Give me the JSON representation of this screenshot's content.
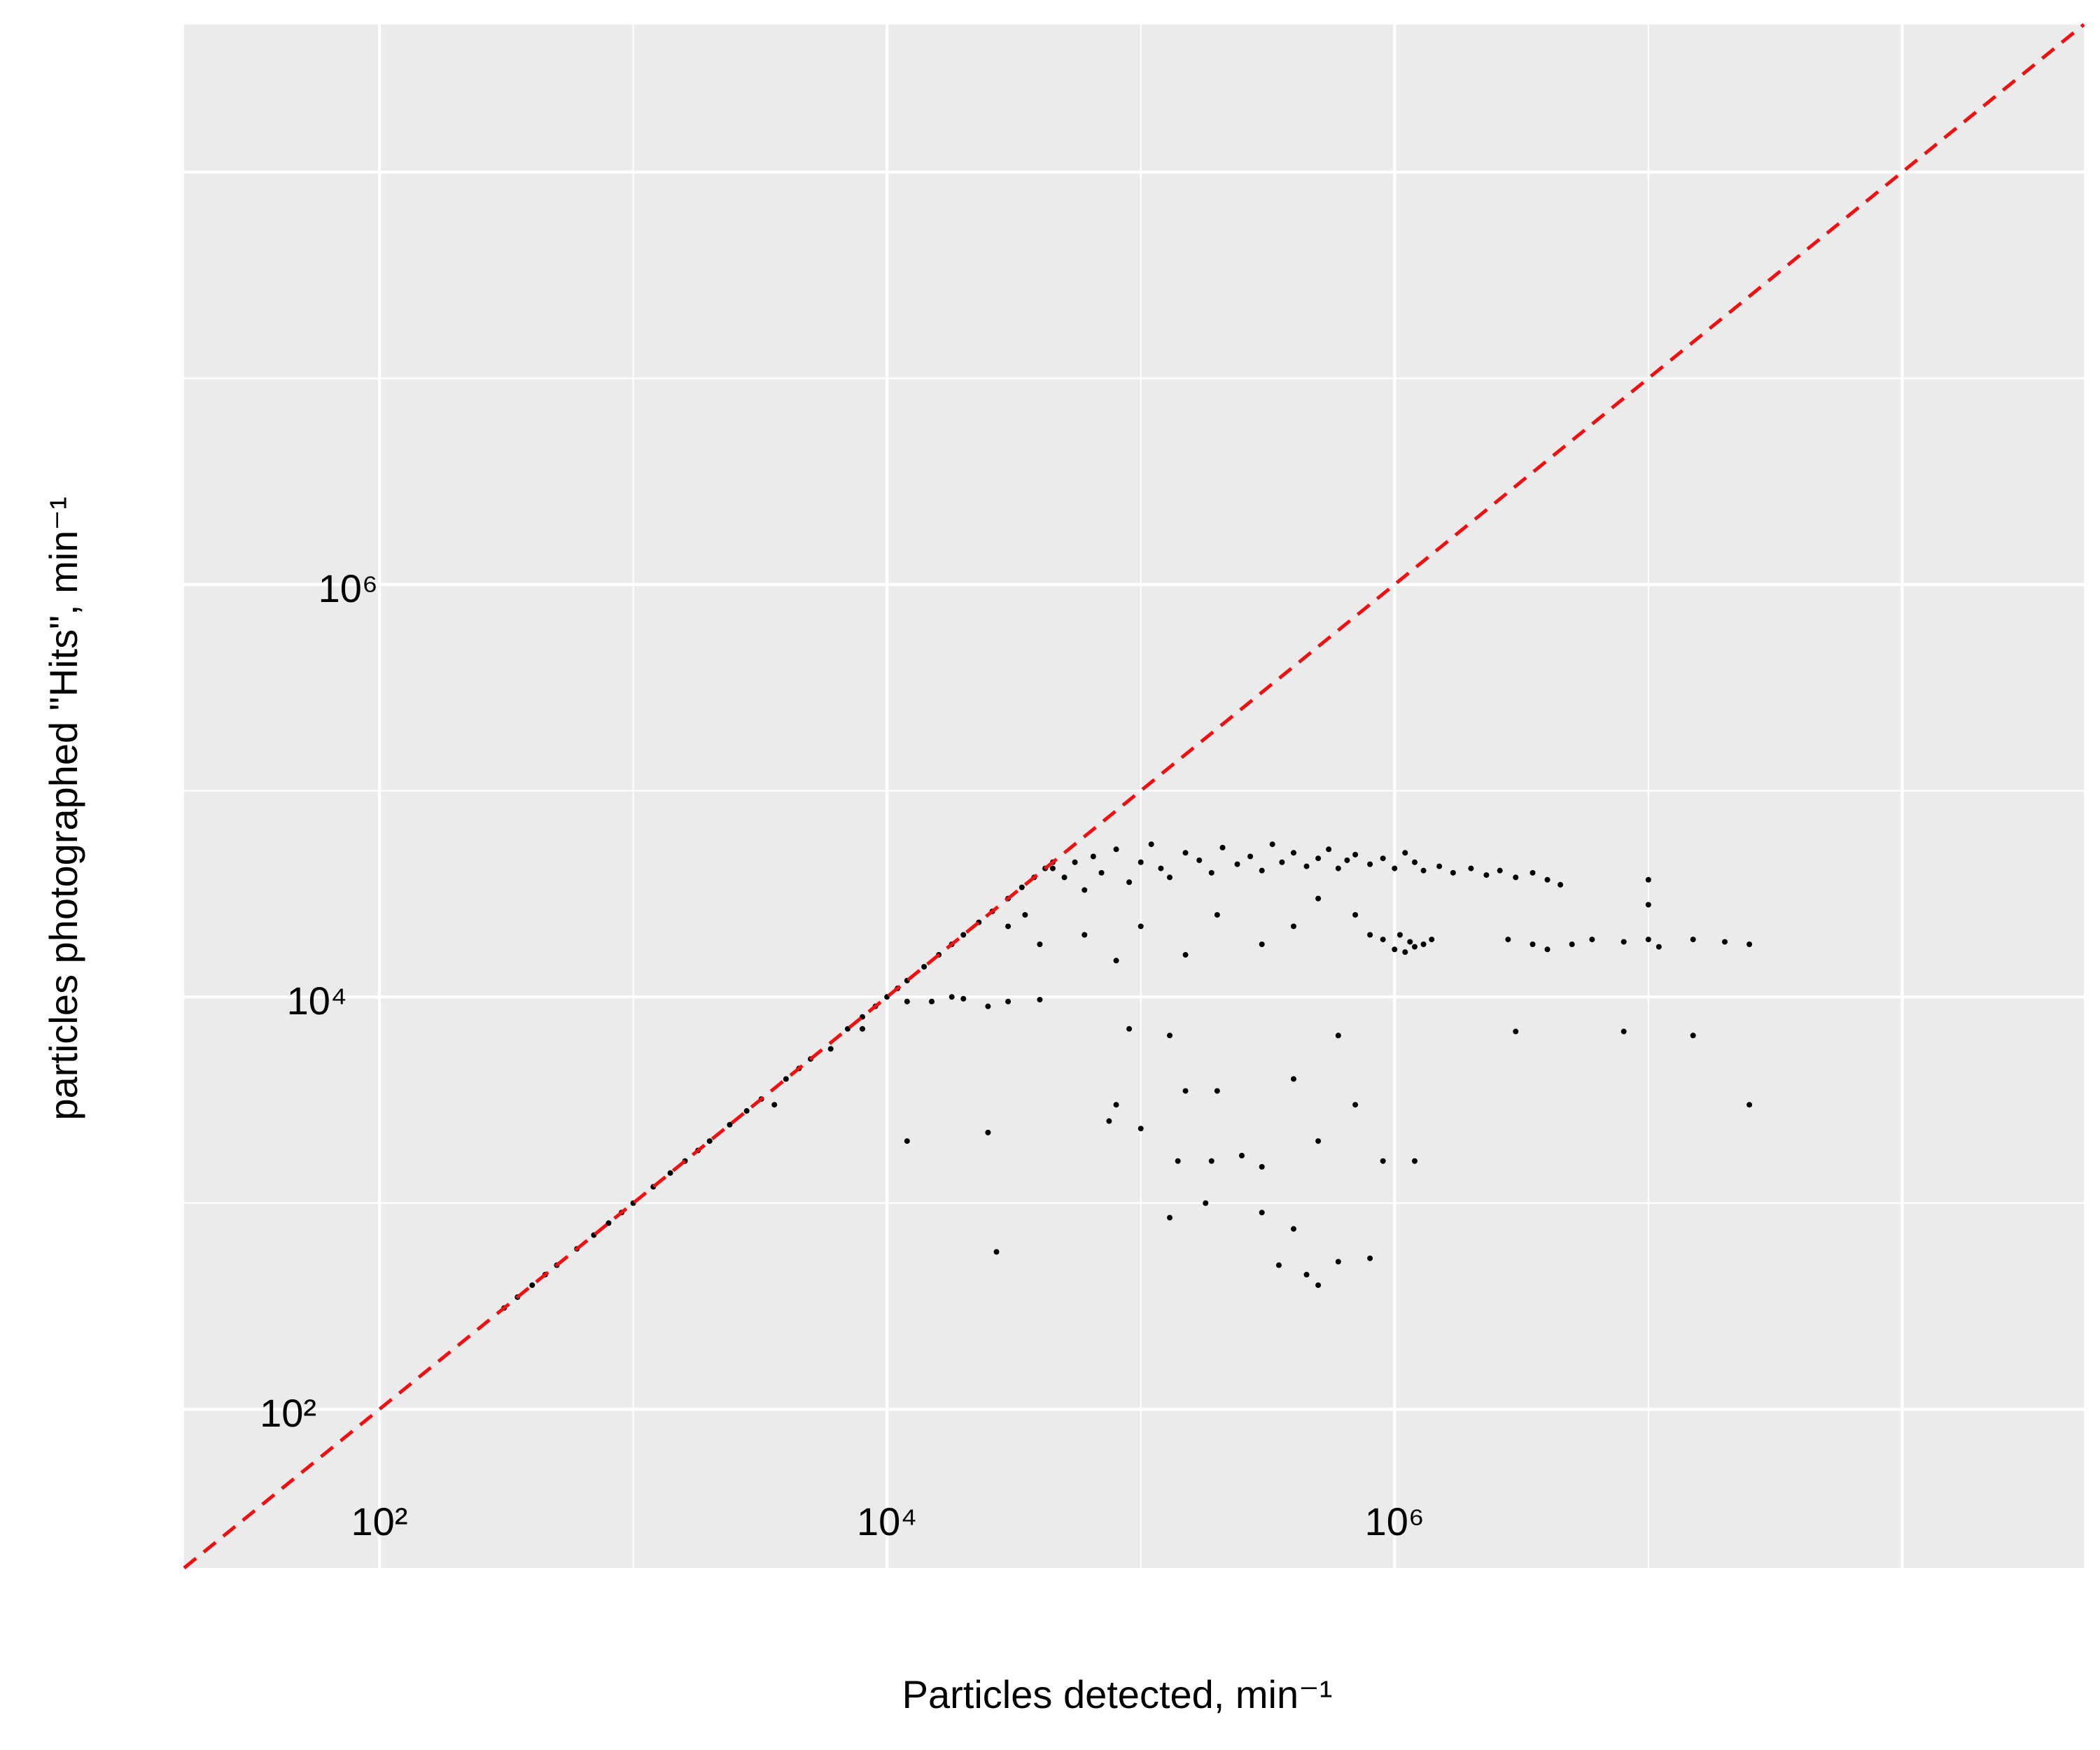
{
  "chart_data": {
    "type": "scatter",
    "x_label": "Particles detected, min⁻¹",
    "y_label": "particles photographed \"Hits\", min⁻¹",
    "x_log": true,
    "y_log": true,
    "xlim": [
      17,
      520000000
    ],
    "ylim": [
      17,
      520000000
    ],
    "xticks": [
      {
        "value": 100,
        "label": "10²"
      },
      {
        "value": 10000,
        "label": "10⁴"
      },
      {
        "value": 1000000,
        "label": "10⁶"
      }
    ],
    "yticks": [
      {
        "value": 100,
        "label": "10²"
      },
      {
        "value": 10000,
        "label": "10⁴"
      },
      {
        "value": 1000000,
        "label": "10⁶"
      }
    ],
    "xgrid_major": [
      100,
      10000,
      1000000,
      100000000
    ],
    "xgrid_minor": [
      1000,
      100000,
      10000000
    ],
    "ygrid_major": [
      100,
      10000,
      1000000,
      100000000
    ],
    "ygrid_minor": [
      1000,
      100000,
      10000000
    ],
    "color": "#000000",
    "identity_line_color": "#ee1111",
    "background": "#ebebeb",
    "x": [
      310,
      350,
      400,
      450,
      500,
      600,
      700,
      800,
      900,
      1000,
      1200,
      1400,
      1600,
      1800,
      2000,
      2400,
      2800,
      3200,
      3600,
      4000,
      4500,
      5000,
      6000,
      7000,
      8000,
      9000,
      10000,
      11000,
      12000,
      14000,
      16000,
      18000,
      20000,
      23000,
      26000,
      30000,
      34000,
      38000,
      42000,
      45000,
      45000,
      50000,
      55000,
      60000,
      65000,
      70000,
      80000,
      90000,
      100000,
      110000,
      120000,
      130000,
      150000,
      170000,
      190000,
      210000,
      240000,
      270000,
      300000,
      330000,
      360000,
      400000,
      450000,
      500000,
      550000,
      600000,
      650000,
      700000,
      800000,
      900000,
      1000000,
      1100000,
      1200000,
      1300000,
      1500000,
      1700000,
      2000000,
      2300000,
      2600000,
      3000000,
      3500000,
      4000000,
      4500000,
      30000,
      35000,
      40000,
      60000,
      80000,
      100000,
      150000,
      200000,
      300000,
      400000,
      500000,
      700000,
      800000,
      900000,
      1000000,
      1050000,
      1100000,
      1150000,
      1200000,
      1300000,
      1400000,
      2800000,
      3500000,
      4000000,
      5000000,
      6000000,
      8000000,
      10000000,
      11000000,
      15000000,
      20000000,
      25000000,
      10000000,
      10000000,
      12000,
      15000,
      20000,
      25000,
      30000,
      40000,
      8000,
      12000,
      25000,
      27000,
      90000,
      80000,
      75000,
      100000,
      130000,
      150000,
      140000,
      190000,
      200000,
      250000,
      300000,
      400000,
      600000,
      700000,
      500000,
      900000,
      1200000,
      8000000,
      15000000,
      25000000,
      180000,
      350000,
      450000,
      500000,
      600000,
      800000,
      130000,
      300000,
      400000,
      3000000,
      18000
    ],
    "y": [
      310,
      350,
      400,
      450,
      500,
      600,
      700,
      800,
      900,
      1000,
      1200,
      1400,
      1600,
      1800,
      2000,
      2400,
      2800,
      3200,
      3000,
      4000,
      4500,
      5000,
      5600,
      7000,
      8000,
      9000,
      10000,
      11000,
      12000,
      14000,
      16000,
      18000,
      20000,
      23000,
      26000,
      30000,
      34000,
      38000,
      42000,
      45000,
      42000,
      38000,
      45000,
      33000,
      48000,
      40000,
      52000,
      36000,
      45000,
      55000,
      42000,
      38000,
      50000,
      46000,
      40000,
      53000,
      44000,
      48000,
      41000,
      55000,
      45000,
      50000,
      43000,
      47000,
      52000,
      42000,
      46000,
      49000,
      44000,
      47000,
      42000,
      50000,
      45000,
      41000,
      43000,
      40000,
      42000,
      39000,
      41000,
      38000,
      40000,
      37000,
      35000,
      22000,
      25000,
      18000,
      20000,
      15000,
      22000,
      16000,
      25000,
      18000,
      22000,
      30000,
      25000,
      20000,
      19000,
      17000,
      20000,
      16500,
      18500,
      17500,
      18000,
      19000,
      19000,
      18000,
      17000,
      18000,
      19000,
      18500,
      19000,
      17500,
      19000,
      18500,
      18000,
      37000,
      28000,
      9500,
      9500,
      9800,
      9000,
      9500,
      9700,
      7000,
      2000,
      2200,
      580,
      7000,
      3000,
      2500,
      2300,
      6500,
      3500,
      1600,
      1600,
      3500,
      1700,
      1500,
      4000,
      6500,
      3000,
      2000,
      1600,
      1600,
      6800,
      6500,
      3000,
      1000,
      500,
      450,
      400,
      520,
      540,
      850,
      900,
      750,
      6800,
      10000
    ]
  }
}
